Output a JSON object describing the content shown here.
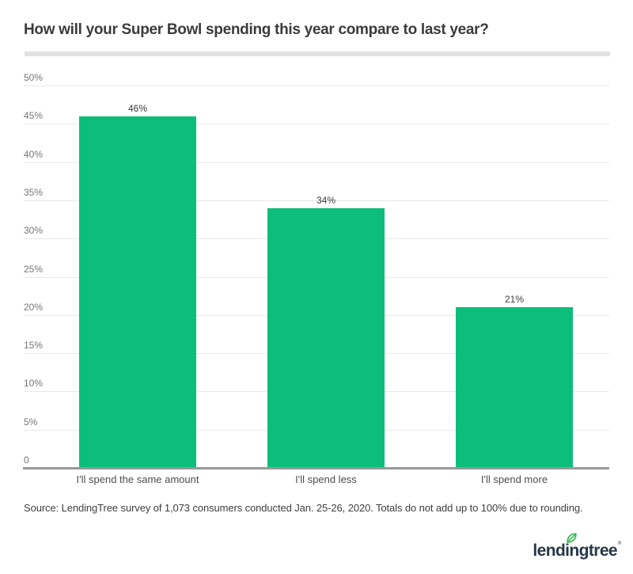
{
  "title": "How will your Super Bowl spending this year compare to last year?",
  "source_note": "Source: LendingTree survey of 1,073 consumers conducted Jan. 25-26, 2020. Totals do not add up to 100% due to rounding.",
  "logo": {
    "text": "lendingtree",
    "leaf_icon": "leaf-icon",
    "trademark": "®"
  },
  "colors": {
    "bar": "#0dbd7c",
    "gridline": "#e9e9e9",
    "axis_line": "#999999",
    "divider": "#e2e2e2",
    "title_text": "#3b3b3b",
    "tick_text": "#757575",
    "value_text": "#3c3c3c",
    "category_text": "#4d4d4d",
    "logo_text": "#253746",
    "logo_leaf": "#2fb44a"
  },
  "chart_data": {
    "type": "bar",
    "title": "How will your Super Bowl spending this year compare to last year?",
    "categories": [
      "I'll spend the same amount",
      "I'll spend less",
      "I'll spend more"
    ],
    "values": [
      46,
      34,
      21
    ],
    "value_labels": [
      "46%",
      "34%",
      "21%"
    ],
    "yticks": [
      50,
      45,
      40,
      35,
      30,
      25,
      20,
      15,
      10,
      5,
      0
    ],
    "ytick_labels": [
      "50%",
      "45%",
      "40%",
      "35%",
      "30%",
      "25%",
      "20%",
      "15%",
      "10%",
      "5%",
      "0"
    ],
    "ylim": [
      0,
      50
    ],
    "xlabel": "",
    "ylabel": "",
    "grid": true,
    "legend_position": "none",
    "bar_color": "#0dbd7c"
  }
}
